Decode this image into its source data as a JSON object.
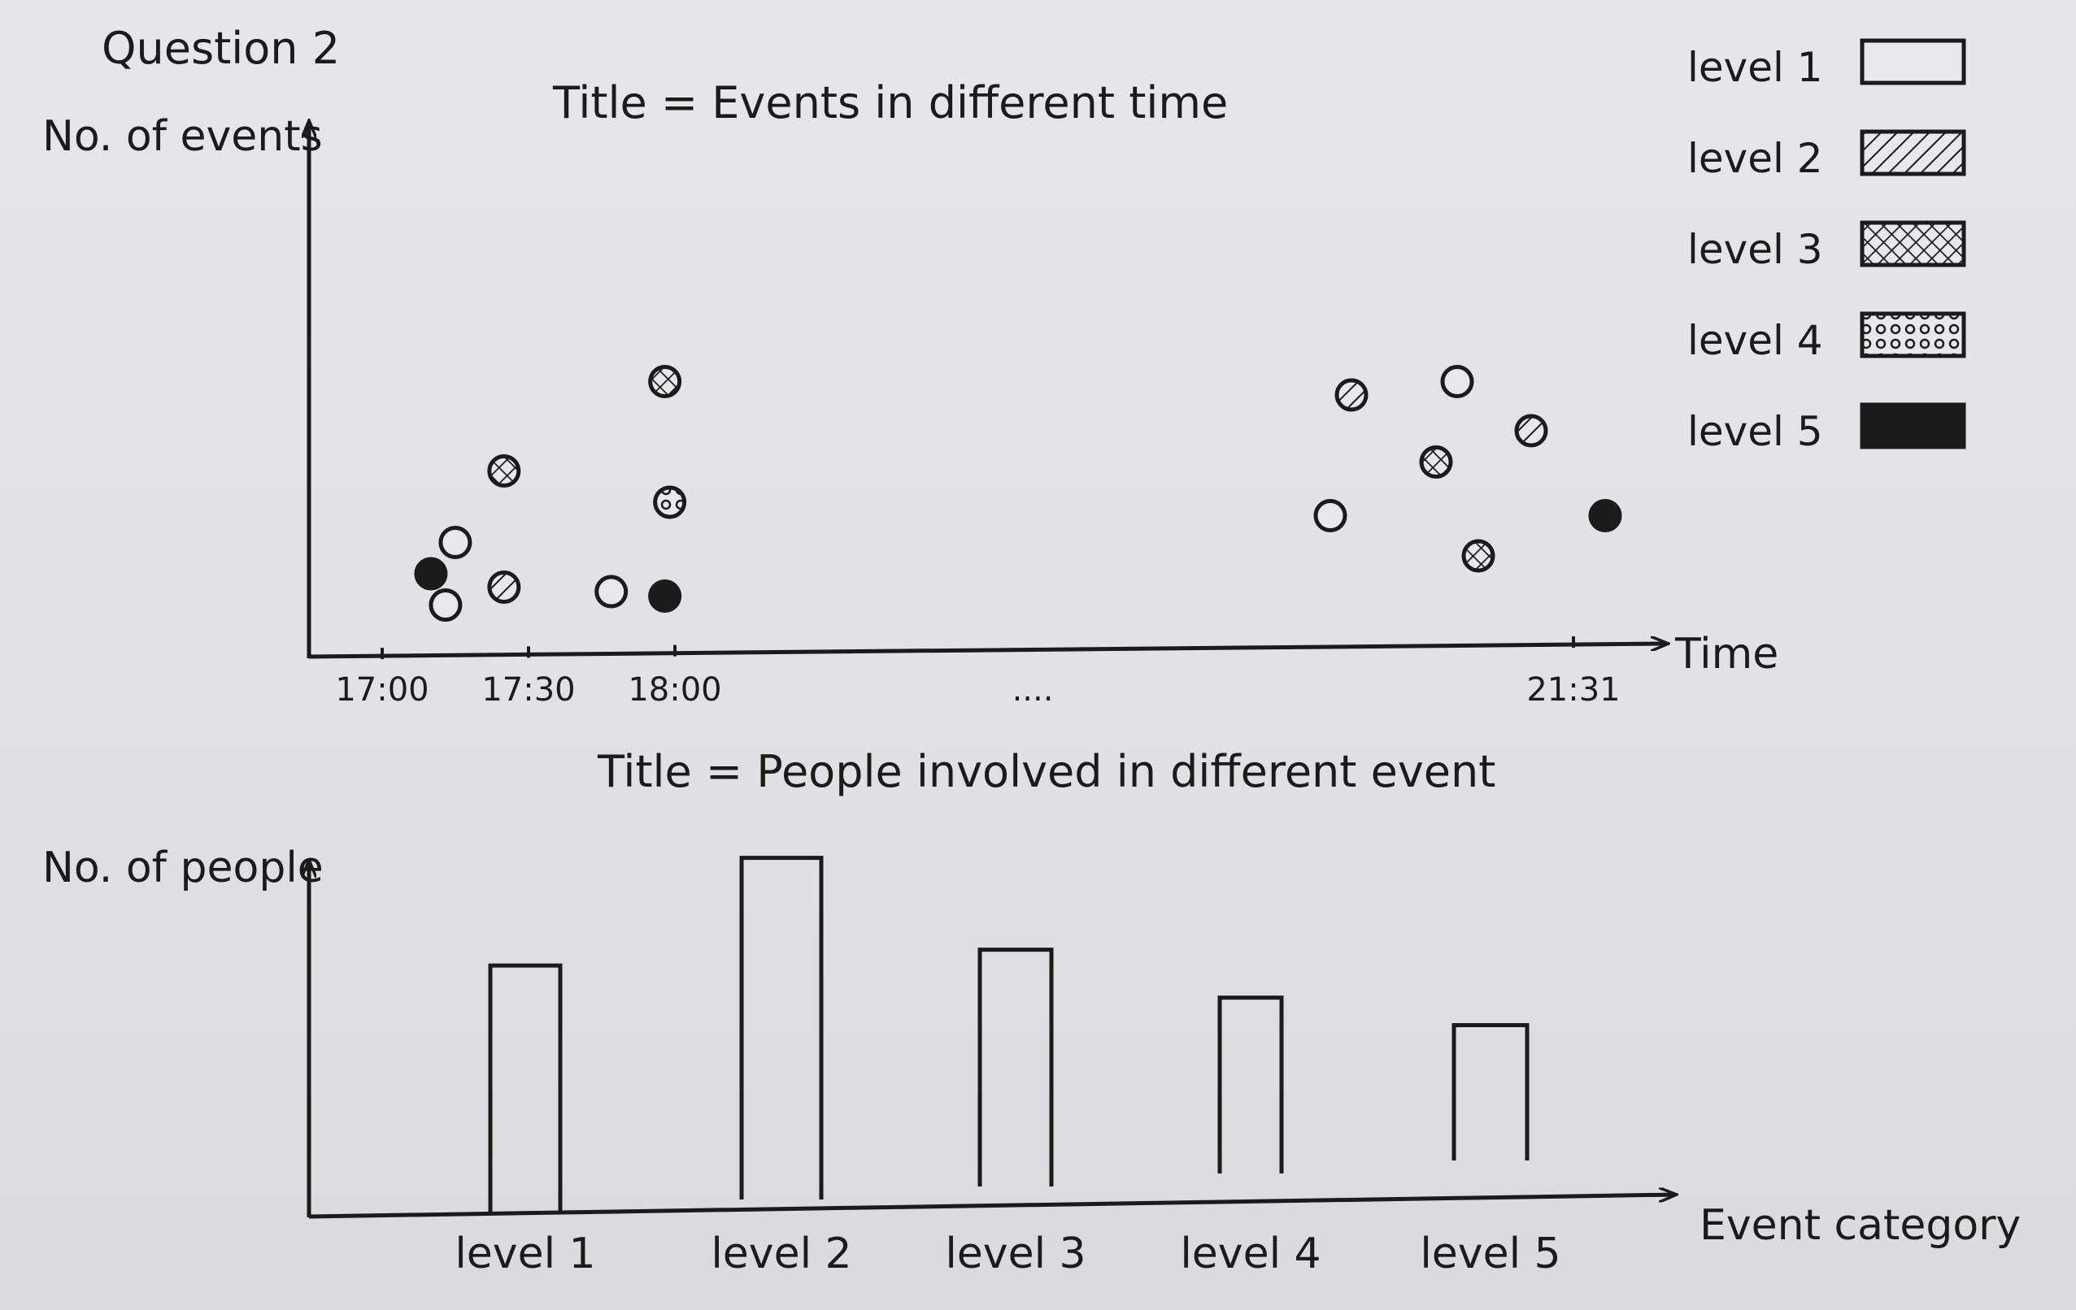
{
  "question_label": "Question 2",
  "legend": {
    "items": [
      {
        "label": "level 1",
        "pattern": "empty"
      },
      {
        "label": "level 2",
        "pattern": "hatch"
      },
      {
        "label": "level 3",
        "pattern": "crosshatch"
      },
      {
        "label": "level 4",
        "pattern": "dots"
      },
      {
        "label": "level 5",
        "pattern": "solid"
      }
    ]
  },
  "colors": {
    "ink": "#1b1b1b",
    "paper": "#e3e3e6"
  },
  "chart_data": [
    {
      "type": "scatter",
      "title": "Title = Events in different time",
      "xlabel": "Time",
      "ylabel": "No. of events",
      "x_ticks": [
        "17:00",
        "17:30",
        "18:00",
        "....",
        "21:31"
      ],
      "points": [
        {
          "x": "17:10",
          "y": 0.9,
          "level": 5
        },
        {
          "x": "17:15",
          "y": 1.25,
          "level": 1
        },
        {
          "x": "17:13",
          "y": 0.55,
          "level": 1
        },
        {
          "x": "17:25",
          "y": 0.75,
          "level": 2
        },
        {
          "x": "17:25",
          "y": 2.05,
          "level": 3
        },
        {
          "x": "17:47",
          "y": 0.7,
          "level": 1
        },
        {
          "x": "17:58",
          "y": 0.65,
          "level": 5
        },
        {
          "x": "17:59",
          "y": 1.7,
          "level": 4
        },
        {
          "x": "17:58",
          "y": 3.05,
          "level": 3
        },
        {
          "x": "21:10",
          "y": 2.9,
          "level": 2
        },
        {
          "x": "21:20",
          "y": 3.05,
          "level": 1
        },
        {
          "x": "21:27",
          "y": 2.5,
          "level": 2
        },
        {
          "x": "21:18",
          "y": 2.15,
          "level": 3
        },
        {
          "x": "21:08",
          "y": 1.55,
          "level": 1
        },
        {
          "x": "21:22",
          "y": 1.1,
          "level": 3
        },
        {
          "x": "21:34",
          "y": 1.55,
          "level": 5
        }
      ]
    },
    {
      "type": "bar",
      "title": "Title = People involved in different event",
      "xlabel": "Event category",
      "ylabel": "No. of people",
      "categories": [
        "level 1",
        "level 2",
        "level 3",
        "level 4",
        "level 5"
      ],
      "values": [
        7.3,
        10.1,
        7.0,
        5.2,
        4.0
      ],
      "ylim": [
        0,
        10.5
      ]
    }
  ]
}
